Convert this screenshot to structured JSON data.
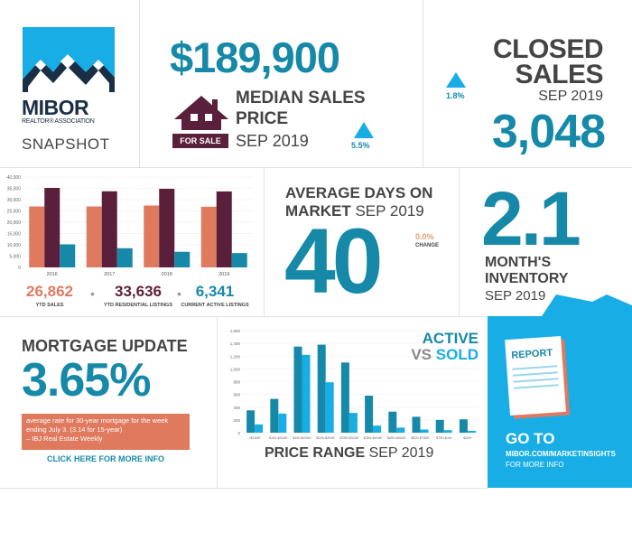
{
  "colors": {
    "teal": "#1689a8",
    "maroon": "#5a1f3a",
    "salmon": "#e07a5f",
    "blue": "#18aee5",
    "dark": "#444444"
  },
  "logo": {
    "name": "MIBOR",
    "subtitle": "REALTOR® ASSOCIATION",
    "tag": "SNAPSHOT"
  },
  "median": {
    "price": "$189,900",
    "title_line1": "MEDIAN SALES",
    "title_line2": "PRICE",
    "period": "SEP 2019",
    "change": "5.5%",
    "badge": "FOR SALE",
    "icon": "house-icon"
  },
  "closed": {
    "title_line1": "CLOSED",
    "title_line2": "SALES",
    "period": "SEP 2019",
    "change": "1.8%",
    "value": "3,048"
  },
  "ytd": {
    "y_ticks": [
      "40,000",
      "35,000",
      "30,000",
      "25,000",
      "20,000",
      "15,000",
      "10,000",
      "5,000",
      "0"
    ],
    "categories": [
      "2016",
      "2017",
      "2018",
      "2019"
    ],
    "stats": [
      {
        "value": "26,862",
        "label": "YTD SALES"
      },
      {
        "value": "33,636",
        "label": "YTD RESIDENTIAL LISTINGS"
      },
      {
        "value": "6,341",
        "label": "CURRENT ACTIVE LISTINGS"
      }
    ]
  },
  "dom": {
    "title_line1": "AVERAGE DAYS ON",
    "title_line2_bold": "MARKET",
    "title_line2_light": "SEP 2019",
    "value": "40",
    "change": "0.0%",
    "change_label": "CHANGE"
  },
  "inventory": {
    "value": "2.1",
    "label_line1": "MONTH'S",
    "label_line2": "INVENTORY",
    "period": "SEP 2019"
  },
  "mortgage": {
    "title": "MORTGAGE UPDATE",
    "rate": "3.65%",
    "note": "average rate for 30-year mortgage for the week ending July 3. (3.14 for 15-year)",
    "source": "– IBJ Real Estate Weekly",
    "link": "CLICK HERE FOR MORE INFO"
  },
  "price_range": {
    "title_bold": "PRICE RANGE",
    "title_light": "SEP 2019",
    "legend_active": "ACTIVE",
    "legend_vs": "VS",
    "legend_sold": "SOLD",
    "y_ticks": [
      "1,600",
      "1,400",
      "1,200",
      "1,000",
      "800",
      "600",
      "400",
      "200",
      "0"
    ]
  },
  "report": {
    "doc_label": "REPORT",
    "go_to": "GO TO",
    "url": "MIBOR.COM/MARKETINSIGHTS",
    "more": "FOR MORE INFO"
  },
  "chart_data": [
    {
      "type": "bar",
      "categories": [
        "2016",
        "2017",
        "2018",
        "2019"
      ],
      "series": [
        {
          "name": "YTD SALES",
          "values": [
            27000,
            27000,
            27400,
            26862
          ]
        },
        {
          "name": "YTD RESIDENTIAL LISTINGS",
          "values": [
            35200,
            33700,
            34800,
            33636
          ]
        },
        {
          "name": "CURRENT ACTIVE LISTINGS",
          "values": [
            10200,
            8500,
            6900,
            6341
          ]
        }
      ],
      "ylim": [
        0,
        40000
      ]
    },
    {
      "type": "bar",
      "categories": [
        "<$100K",
        "$100-$150K",
        "$150-$200K",
        "$200-$250K",
        "$250-$300K",
        "$300-$400K",
        "$400-$500K",
        "$500-$750K",
        "$750-$1M",
        "$1M+"
      ],
      "series": [
        {
          "name": "ACTIVE",
          "values": [
            350,
            530,
            1350,
            1380,
            1100,
            580,
            330,
            250,
            200,
            210
          ]
        },
        {
          "name": "SOLD",
          "values": [
            130,
            300,
            1220,
            790,
            310,
            110,
            80,
            50,
            40,
            30
          ]
        }
      ],
      "ylim": [
        0,
        1600
      ]
    }
  ]
}
